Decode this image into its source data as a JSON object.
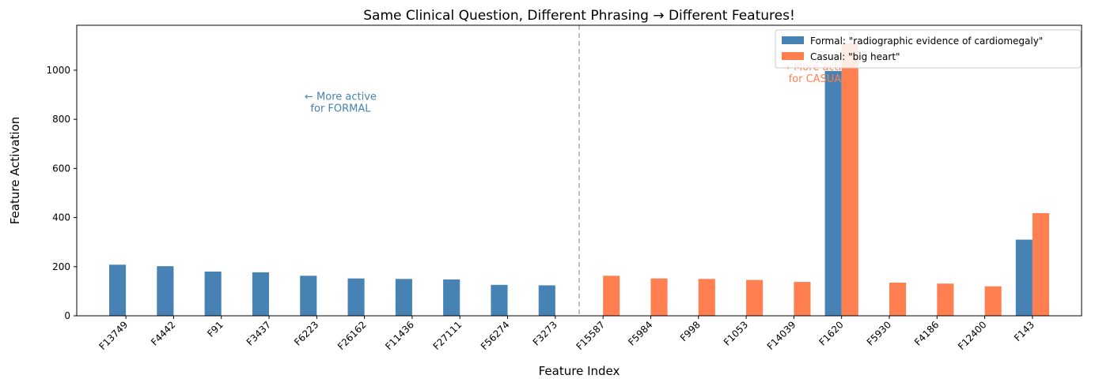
{
  "chart_data": {
    "type": "bar",
    "title": "Same Clinical Question, Different Phrasing → Different Features!",
    "x_label": "Feature Index",
    "y_label": "Feature Activation",
    "categories": [
      "F13749",
      "F4442",
      "F91",
      "F3437",
      "F6223",
      "F26162",
      "F11436",
      "F27111",
      "F56274",
      "F3273",
      "F15587",
      "F5984",
      "F998",
      "F1053",
      "F14039",
      "F1620",
      "F5930",
      "F4186",
      "F12400",
      "F143"
    ],
    "series": [
      {
        "name": "Formal: \"radiographic evidence of cardiomegaly\"",
        "color": "#4682b4",
        "values": [
          208,
          202,
          180,
          177,
          163,
          152,
          150,
          148,
          126,
          124,
          0,
          0,
          0,
          0,
          0,
          997,
          0,
          0,
          0,
          310
        ]
      },
      {
        "name": "Casual: \"big heart\"",
        "color": "#ff7f50",
        "values": [
          0,
          0,
          0,
          0,
          0,
          0,
          0,
          0,
          0,
          0,
          163,
          152,
          150,
          146,
          138,
          1110,
          135,
          131,
          120,
          418
        ]
      }
    ],
    "ylim": [
      0,
      1183
    ],
    "yticks": [
      0,
      200,
      400,
      600,
      800,
      1000
    ],
    "divider": 9.5,
    "annotations": [
      {
        "lines": [
          "← More active",
          "for FORMAL"
        ],
        "x": 4.5,
        "y": 880,
        "color": "#4682b4"
      },
      {
        "lines": [
          "→ More active",
          "for CASUAL"
        ],
        "x": 14.5,
        "y": 1000,
        "color": "#ff7f50"
      }
    ],
    "legend": "upper right",
    "grid": false
  }
}
